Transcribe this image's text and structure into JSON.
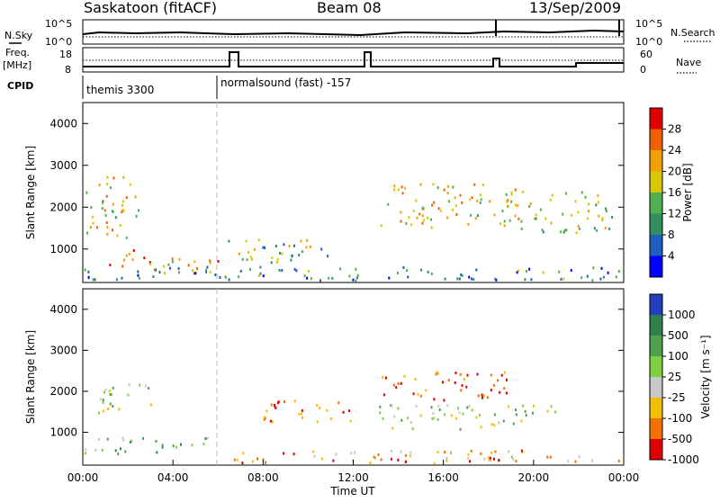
{
  "header": {
    "station": "Saskatoon (fitACF)",
    "beam": "Beam 08",
    "date": "13/Sep/2009"
  },
  "left_labels": {
    "nsky": "N.Sky",
    "freq_top": "Freq.",
    "freq_unit": "[MHz]",
    "cpid": "CPID"
  },
  "right_labels": {
    "nsearch": "N.Search",
    "nave": "Nave"
  },
  "strip_ticks": {
    "noise_left": [
      "10^5",
      "10^0"
    ],
    "noise_right": [
      "10^5",
      "10^0"
    ],
    "freq_left": [
      "18",
      "8"
    ],
    "nave_right": [
      "60",
      "0"
    ]
  },
  "cpid": {
    "mode1": "themis 3300",
    "mode2": "normalsound (fast) -157"
  },
  "chart_data": [
    {
      "type": "heatmap",
      "name": "power",
      "ylabel": "Slant Range [km]",
      "ylim": [
        200,
        4500
      ],
      "y_ticks": [
        "1000",
        "2000",
        "3000",
        "4000"
      ],
      "xlim": [
        "00:00",
        "24:00"
      ],
      "colorbar": {
        "label": "Power [dB]",
        "ticks": [
          "4",
          "8",
          "12",
          "16",
          "20",
          "24",
          "28"
        ],
        "colors": [
          "#0000ff",
          "#1f5fc0",
          "#2f8f5f",
          "#4fb04f",
          "#d8c800",
          "#f0a000",
          "#f06000",
          "#e00000"
        ]
      },
      "bands": [
        {
          "t0": 0.0,
          "t1": 2.5,
          "r0": 1300,
          "r1": 2800,
          "level": 0.55
        },
        {
          "t0": 1.0,
          "t1": 3.0,
          "r0": 600,
          "r1": 1000,
          "level": 0.9
        },
        {
          "t0": 2.5,
          "t1": 6.0,
          "r0": 400,
          "r1": 800,
          "level": 0.7
        },
        {
          "t0": 6.0,
          "t1": 11.0,
          "r0": 700,
          "r1": 1300,
          "level": 0.45
        },
        {
          "t0": 13.2,
          "t1": 20.0,
          "r0": 1500,
          "r1": 2600,
          "level": 0.6
        },
        {
          "t0": 20.0,
          "t1": 23.5,
          "r0": 1400,
          "r1": 2400,
          "level": 0.5
        },
        {
          "t0": 0.0,
          "t1": 24.0,
          "r0": 250,
          "r1": 600,
          "level": 0.3
        }
      ]
    },
    {
      "type": "heatmap",
      "name": "velocity",
      "ylabel": "Slant Range [km]",
      "ylim": [
        200,
        4500
      ],
      "y_ticks": [
        "1000",
        "2000",
        "3000",
        "4000"
      ],
      "xlim": [
        "00:00",
        "24:00"
      ],
      "x_ticks": [
        "00:00",
        "04:00",
        "08:00",
        "12:00",
        "16:00",
        "20:00",
        "00:00"
      ],
      "xlabel": "Time UT",
      "colorbar": {
        "label": "Velocity [m s⁻¹]",
        "ticks": [
          "1000",
          "500",
          "100",
          "25",
          "-25",
          "-100",
          "-500",
          "-1000"
        ],
        "colors": [
          "#2040c0",
          "#2f7f4f",
          "#4fa04f",
          "#7fd040",
          "#c8c8c8",
          "#f0c000",
          "#f07000",
          "#e00000"
        ]
      },
      "bands": [
        {
          "t0": 0.0,
          "t1": 3.0,
          "r0": 1500,
          "r1": 2200,
          "level": 0.5
        },
        {
          "t0": 0.0,
          "t1": 6.0,
          "r0": 500,
          "r1": 900,
          "level": 0.35
        },
        {
          "t0": 8.0,
          "t1": 12.0,
          "r0": 1200,
          "r1": 1800,
          "level": 0.8
        },
        {
          "t0": 13.2,
          "t1": 19.0,
          "r0": 1800,
          "r1": 2500,
          "level": 0.85
        },
        {
          "t0": 13.0,
          "t1": 21.0,
          "r0": 1100,
          "r1": 1700,
          "level": 0.5
        },
        {
          "t0": 6.0,
          "t1": 24.0,
          "r0": 250,
          "r1": 600,
          "level": 0.7
        }
      ]
    }
  ]
}
